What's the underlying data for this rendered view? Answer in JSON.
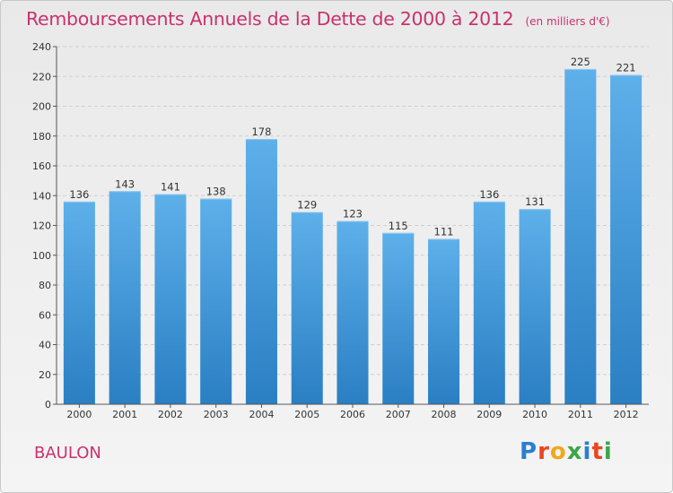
{
  "header": {
    "title": "Remboursements Annuels de la Dette de 2000 à 2012",
    "unit": "(en milliers d'€)"
  },
  "footer": {
    "place": "BAULON",
    "logo": {
      "letters": [
        "P",
        "r",
        "o",
        "x",
        "i",
        "t",
        "i"
      ],
      "colors": [
        "#2a7fd0",
        "#e8471f",
        "#f0a81a",
        "#3aa648",
        "#2a7fd0",
        "#e8471f",
        "#3aa648"
      ]
    }
  },
  "colors": {
    "bar_light": "#5eb0ea",
    "bar_dark": "#2a7fc3",
    "title": "#c8326e",
    "grid": "#cfcfcf"
  },
  "chart_data": {
    "type": "bar",
    "title": "Remboursements Annuels de la Dette de 2000 à 2012",
    "subtitle": "(en milliers d'€)",
    "categories": [
      "2000",
      "2001",
      "2002",
      "2003",
      "2004",
      "2005",
      "2006",
      "2007",
      "2008",
      "2009",
      "2010",
      "2011",
      "2012"
    ],
    "values": [
      136,
      143,
      141,
      138,
      178,
      129,
      123,
      115,
      111,
      136,
      131,
      225,
      221
    ],
    "ylim": [
      0,
      240
    ],
    "yticks": [
      0,
      20,
      40,
      60,
      80,
      100,
      120,
      140,
      160,
      180,
      200,
      220,
      240
    ],
    "grid": true,
    "legend": "none"
  }
}
